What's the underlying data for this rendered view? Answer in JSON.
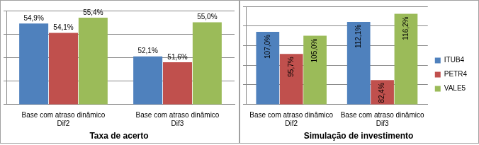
{
  "chart_data": [
    {
      "type": "bar",
      "title": "Taxa de acerto",
      "categories": [
        "Base com atraso dinâmico Dif2",
        "Base com atraso dinâmico Dif3"
      ],
      "series": [
        {
          "name": "ITUB4",
          "color": "#4f81bd",
          "values": [
            54.9,
            52.1
          ],
          "value_labels": [
            "54,9%",
            "52,1%"
          ]
        },
        {
          "name": "PETR4",
          "color": "#c0504d",
          "values": [
            54.1,
            51.6
          ],
          "value_labels": [
            "54,1%",
            "51,6%"
          ]
        },
        {
          "name": "VALE5",
          "color": "#9bbb59",
          "values": [
            55.4,
            55.0
          ],
          "value_labels": [
            "55,4%",
            "55,0%"
          ]
        }
      ],
      "ylim": [
        48,
        56
      ],
      "yticks": [
        48,
        50,
        52,
        54,
        56
      ],
      "grid": true,
      "tick_labels": "x",
      "data_labels": true
    },
    {
      "type": "bar",
      "title": "Simulação de investimento",
      "categories": [
        "Base com atraso dinâmico Dif2",
        "Base com atraso dinâmico Dif3"
      ],
      "series": [
        {
          "name": "ITUB4",
          "color": "#4f81bd",
          "values": [
            107.0,
            112.1
          ],
          "value_labels": [
            "107,0%",
            "112,1%"
          ]
        },
        {
          "name": "PETR4",
          "color": "#c0504d",
          "values": [
            95.7,
            82.4
          ],
          "value_labels": [
            "95,7%",
            "82,4%"
          ]
        },
        {
          "name": "VALE5",
          "color": "#9bbb59",
          "values": [
            105.0,
            116.2
          ],
          "value_labels": [
            "105,0%",
            "116,2%"
          ]
        }
      ],
      "ylim": [
        70,
        120
      ],
      "yticks": [
        70,
        80,
        90,
        100,
        110,
        120
      ],
      "grid": true,
      "tick_labels": "x",
      "data_labels": true,
      "legend": "right"
    }
  ]
}
